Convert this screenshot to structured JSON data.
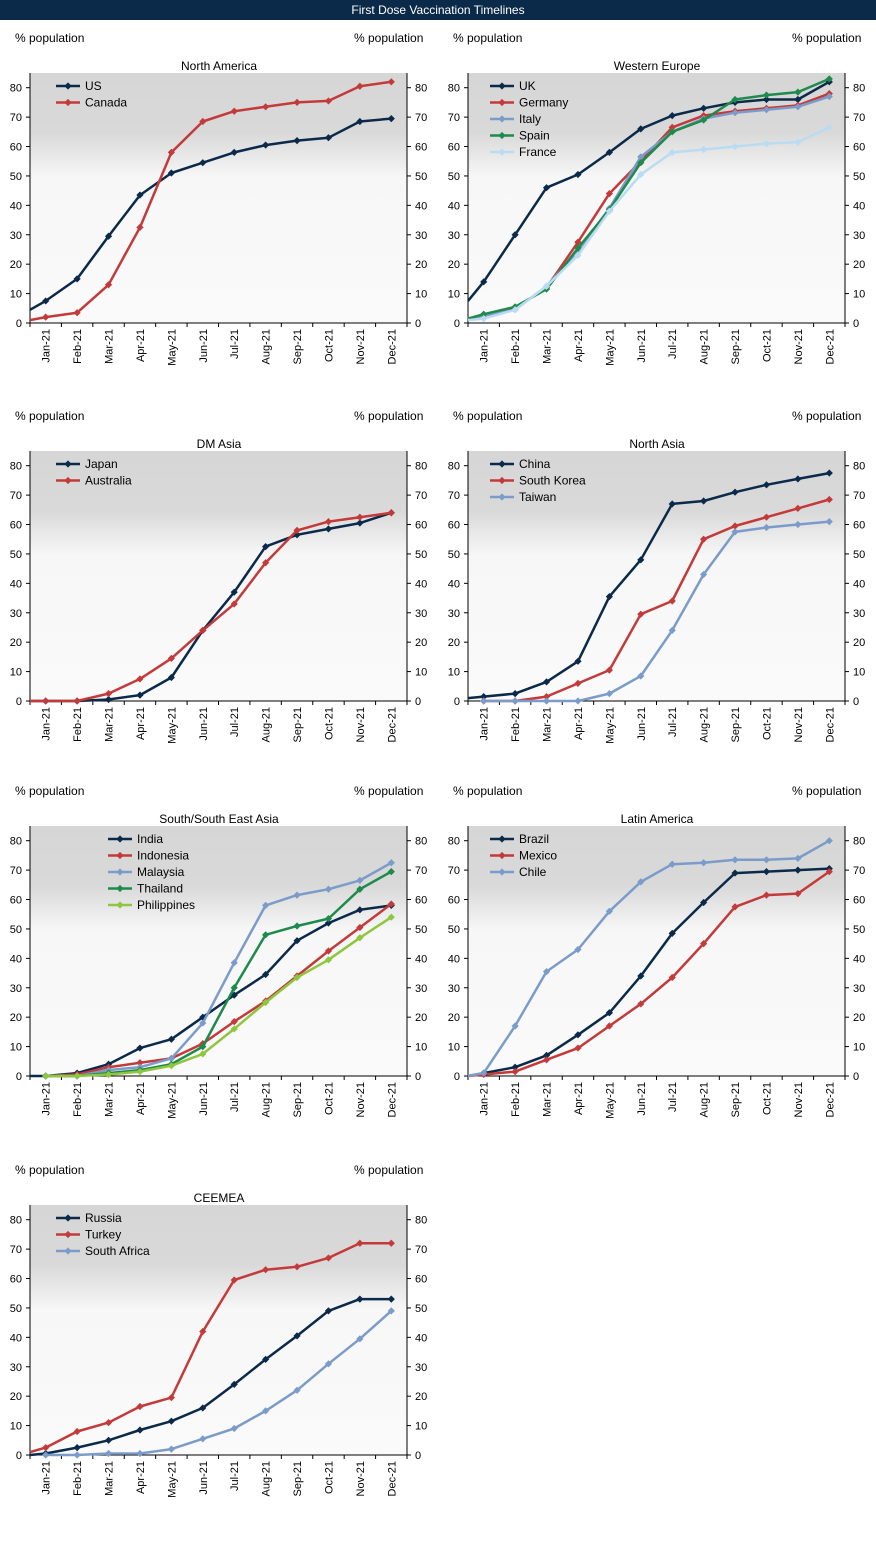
{
  "page_title": "First Dose Vaccination Timelines",
  "chart_data": [
    {
      "type": "line",
      "title": "North America",
      "ylabel_left": "% population",
      "ylabel_right": "% population",
      "ylim": [
        0,
        85
      ],
      "yticks": [
        0,
        10,
        20,
        30,
        40,
        50,
        60,
        70,
        80
      ],
      "categories": [
        "Jan-21",
        "Feb-21",
        "Mar-21",
        "Apr-21",
        "May-21",
        "Jun-21",
        "Jul-21",
        "Aug-21",
        "Sep-21",
        "Oct-21",
        "Nov-21",
        "Dec-21"
      ],
      "series": [
        {
          "name": "US",
          "color": "#0b2a4a",
          "x": [
            -0.5,
            0,
            1,
            2,
            3,
            4,
            5,
            6,
            7,
            8,
            9,
            10,
            11
          ],
          "values": [
            4.5,
            7.5,
            15,
            29.5,
            43.5,
            51,
            54.5,
            58,
            60.5,
            62,
            63,
            68.5,
            69.5
          ]
        },
        {
          "name": "Canada",
          "color": "#c43a3a",
          "x": [
            -0.5,
            0,
            1,
            2,
            3,
            4,
            5,
            6,
            7,
            8,
            9,
            10,
            11
          ],
          "values": [
            1,
            2,
            3.5,
            13,
            32.5,
            58,
            68.5,
            72,
            73.5,
            75,
            75.5,
            80.5,
            82
          ]
        }
      ]
    },
    {
      "type": "line",
      "title": "Western Europe",
      "ylabel_left": "% population",
      "ylabel_right": "% population",
      "ylim": [
        0,
        85
      ],
      "yticks": [
        0,
        10,
        20,
        30,
        40,
        50,
        60,
        70,
        80
      ],
      "categories": [
        "Jan-21",
        "Feb-21",
        "Mar-21",
        "Apr-21",
        "May-21",
        "Jun-21",
        "Jul-21",
        "Aug-21",
        "Sep-21",
        "Oct-21",
        "Nov-21",
        "Dec-21"
      ],
      "series": [
        {
          "name": "UK",
          "color": "#0b2a4a",
          "x": [
            -0.5,
            0,
            1,
            2,
            3,
            4,
            5,
            6,
            7,
            8,
            9,
            10,
            11
          ],
          "values": [
            7.5,
            14,
            30,
            46,
            50.5,
            58,
            66,
            70.5,
            73,
            75,
            76,
            76,
            82
          ]
        },
        {
          "name": "Germany",
          "color": "#c43a3a",
          "x": [
            -0.5,
            0,
            1,
            2,
            3,
            4,
            5,
            6,
            7,
            8,
            9,
            10,
            11
          ],
          "values": [
            1.5,
            2.5,
            5,
            12,
            27.5,
            44,
            55,
            66.5,
            70.5,
            72,
            73,
            74,
            78
          ]
        },
        {
          "name": "Italy",
          "color": "#7b9cc9",
          "x": [
            -0.5,
            0,
            1,
            2,
            3,
            4,
            5,
            6,
            7,
            8,
            9,
            10,
            11
          ],
          "values": [
            1.5,
            2.5,
            4.5,
            12.5,
            24.5,
            39,
            56.5,
            65,
            69.5,
            71.5,
            72.5,
            73.5,
            77
          ]
        },
        {
          "name": "Spain",
          "color": "#1e8a4c",
          "x": [
            -0.5,
            0,
            1,
            2,
            3,
            4,
            5,
            6,
            7,
            8,
            9,
            10,
            11
          ],
          "values": [
            1.5,
            3,
            5.5,
            11.5,
            25.5,
            38.5,
            54.5,
            65,
            69,
            76,
            77.5,
            78.5,
            83
          ]
        },
        {
          "name": "France",
          "color": "#b9dcf2",
          "x": [
            -0.5,
            0,
            1,
            2,
            3,
            4,
            5,
            6,
            7,
            8,
            9,
            10,
            11
          ],
          "values": [
            1,
            1.5,
            4.5,
            12.5,
            23,
            38,
            50.5,
            58,
            59,
            60,
            61,
            61.5,
            66.5
          ]
        }
      ]
    },
    {
      "type": "line",
      "title": "DM Asia",
      "ylabel_left": "% population",
      "ylabel_right": "% population",
      "ylim": [
        0,
        85
      ],
      "yticks": [
        0,
        10,
        20,
        30,
        40,
        50,
        60,
        70,
        80
      ],
      "categories": [
        "Jan-21",
        "Feb-21",
        "Mar-21",
        "Apr-21",
        "May-21",
        "Jun-21",
        "Jul-21",
        "Aug-21",
        "Sep-21",
        "Oct-21",
        "Nov-21",
        "Dec-21"
      ],
      "series": [
        {
          "name": "Japan",
          "color": "#0b2a4a",
          "x": [
            -0.5,
            0,
            1,
            2,
            3,
            4,
            5,
            6,
            7,
            8,
            9,
            10,
            11
          ],
          "values": [
            0,
            0,
            0,
            0.5,
            2,
            8,
            24,
            37,
            52.5,
            56.5,
            58.5,
            60.5,
            64
          ]
        },
        {
          "name": "Australia",
          "color": "#c43a3a",
          "x": [
            -0.5,
            0,
            1,
            2,
            3,
            4,
            5,
            6,
            7,
            8,
            9,
            10,
            11
          ],
          "values": [
            0,
            0,
            0,
            2.5,
            7.5,
            14.5,
            24,
            33,
            47,
            58,
            61,
            62.5,
            64
          ]
        }
      ]
    },
    {
      "type": "line",
      "title": "North Asia",
      "ylabel_left": "% population",
      "ylabel_right": "% population",
      "ylim": [
        0,
        85
      ],
      "yticks": [
        0,
        10,
        20,
        30,
        40,
        50,
        60,
        70,
        80
      ],
      "categories": [
        "Jan-21",
        "Feb-21",
        "Mar-21",
        "Apr-21",
        "May-21",
        "Jun-21",
        "Jul-21",
        "Aug-21",
        "Sep-21",
        "Oct-21",
        "Nov-21",
        "Dec-21"
      ],
      "series": [
        {
          "name": "China",
          "color": "#0b2a4a",
          "x": [
            -0.5,
            0,
            1,
            2,
            3,
            4,
            5,
            6,
            7,
            8,
            9,
            10,
            11
          ],
          "values": [
            1,
            1.5,
            2.5,
            6.5,
            13.5,
            35.5,
            48,
            67,
            68,
            71,
            73.5,
            75.5,
            77.5
          ]
        },
        {
          "name": "South Korea",
          "color": "#c43a3a",
          "x": [
            0,
            1,
            2,
            3,
            4,
            5,
            6,
            7,
            8,
            9,
            10,
            11
          ],
          "values": [
            0,
            0,
            1.5,
            6,
            10.5,
            29.5,
            34,
            55,
            59.5,
            62.5,
            65.5,
            68.5
          ]
        },
        {
          "name": "Taiwan",
          "color": "#7b9cc9",
          "x": [
            0,
            1,
            2,
            3,
            4,
            5,
            6,
            7,
            8,
            9,
            10,
            11
          ],
          "values": [
            0,
            0,
            0,
            0,
            2.5,
            8.5,
            24,
            43,
            57.5,
            59,
            60,
            61
          ]
        }
      ]
    },
    {
      "type": "line",
      "title": "South/South East Asia",
      "ylabel_left": "% population",
      "ylabel_right": "% population",
      "ylim": [
        0,
        85
      ],
      "yticks": [
        0,
        10,
        20,
        30,
        40,
        50,
        60,
        70,
        80
      ],
      "categories": [
        "Jan-21",
        "Feb-21",
        "Mar-21",
        "Apr-21",
        "May-21",
        "Jun-21",
        "Jul-21",
        "Aug-21",
        "Sep-21",
        "Oct-21",
        "Nov-21",
        "Dec-21"
      ],
      "series": [
        {
          "name": "India",
          "color": "#0b2a4a",
          "x": [
            -0.5,
            0,
            1,
            2,
            3,
            4,
            5,
            6,
            7,
            8,
            9,
            10,
            11
          ],
          "values": [
            0,
            0,
            1,
            4,
            9.5,
            12.5,
            20,
            27.5,
            34.5,
            46,
            52,
            56.5,
            58
          ]
        },
        {
          "name": "Indonesia",
          "color": "#c43a3a",
          "x": [
            0,
            1,
            2,
            3,
            4,
            5,
            6,
            7,
            8,
            9,
            10,
            11
          ],
          "values": [
            0,
            0.5,
            3,
            4.5,
            6,
            11,
            18.5,
            25.5,
            34,
            42.5,
            50.5,
            58.5
          ]
        },
        {
          "name": "Malaysia",
          "color": "#7b9cc9",
          "x": [
            0,
            1,
            2,
            3,
            4,
            5,
            6,
            7,
            8,
            9,
            10,
            11
          ],
          "values": [
            0,
            0,
            2,
            3,
            6,
            18,
            38.5,
            58,
            61.5,
            63.5,
            66.5,
            72.5
          ]
        },
        {
          "name": "Thailand",
          "color": "#1e8a4c",
          "x": [
            0,
            1,
            2,
            3,
            4,
            5,
            6,
            7,
            8,
            9,
            10,
            11
          ],
          "values": [
            0,
            0,
            1,
            2,
            4,
            10,
            30,
            48,
            51,
            53.5,
            63.5,
            69.5
          ]
        },
        {
          "name": "Philippines",
          "color": "#8fc640",
          "x": [
            0,
            1,
            2,
            3,
            4,
            5,
            6,
            7,
            8,
            9,
            10,
            11
          ],
          "values": [
            0,
            0,
            0.5,
            1.5,
            3.5,
            7.5,
            16,
            25,
            33.5,
            39.5,
            47,
            54
          ]
        }
      ]
    },
    {
      "type": "line",
      "title": "Latin America",
      "ylabel_left": "% population",
      "ylabel_right": "% population",
      "ylim": [
        0,
        85
      ],
      "yticks": [
        0,
        10,
        20,
        30,
        40,
        50,
        60,
        70,
        80
      ],
      "categories": [
        "Jan-21",
        "Feb-21",
        "Mar-21",
        "Apr-21",
        "May-21",
        "Jun-21",
        "Jul-21",
        "Aug-21",
        "Sep-21",
        "Oct-21",
        "Nov-21",
        "Dec-21"
      ],
      "series": [
        {
          "name": "Brazil",
          "color": "#0b2a4a",
          "x": [
            -0.5,
            0,
            1,
            2,
            3,
            4,
            5,
            6,
            7,
            8,
            9,
            10,
            11
          ],
          "values": [
            0,
            1,
            3,
            7,
            14,
            21.5,
            34,
            48.5,
            59,
            69,
            69.5,
            70,
            70.5
          ]
        },
        {
          "name": "Mexico",
          "color": "#c43a3a",
          "x": [
            -0.5,
            0,
            1,
            2,
            3,
            4,
            5,
            6,
            7,
            8,
            9,
            10,
            11
          ],
          "values": [
            0,
            0.5,
            1.5,
            5.5,
            9.5,
            17,
            24.5,
            33.5,
            45,
            57.5,
            61.5,
            62,
            69.5
          ]
        },
        {
          "name": "Chile",
          "color": "#7b9cc9",
          "x": [
            -0.5,
            0,
            1,
            2,
            3,
            4,
            5,
            6,
            7,
            8,
            9,
            10,
            11
          ],
          "values": [
            0,
            1,
            17,
            35.5,
            43,
            56,
            66,
            72,
            72.5,
            73.5,
            73.5,
            74,
            80
          ]
        }
      ]
    },
    {
      "type": "line",
      "title": "CEEMEA",
      "ylabel_left": "% population",
      "ylabel_right": "% population",
      "ylim": [
        0,
        85
      ],
      "yticks": [
        0,
        10,
        20,
        30,
        40,
        50,
        60,
        70,
        80
      ],
      "categories": [
        "Jan-21",
        "Feb-21",
        "Mar-21",
        "Apr-21",
        "May-21",
        "Jun-21",
        "Jul-21",
        "Aug-21",
        "Sep-21",
        "Oct-21",
        "Nov-21",
        "Dec-21"
      ],
      "series": [
        {
          "name": "Russia",
          "color": "#0b2a4a",
          "x": [
            -0.5,
            0,
            1,
            2,
            3,
            4,
            5,
            6,
            7,
            8,
            9,
            10,
            11
          ],
          "values": [
            0,
            0.5,
            2.5,
            5,
            8.5,
            11.5,
            16,
            24,
            32.5,
            40.5,
            49,
            53,
            53
          ]
        },
        {
          "name": "Turkey",
          "color": "#c43a3a",
          "x": [
            -0.5,
            0,
            1,
            2,
            3,
            4,
            5,
            6,
            7,
            8,
            9,
            10,
            11
          ],
          "values": [
            1,
            2.5,
            8,
            11,
            16.5,
            19.5,
            42,
            59.5,
            63,
            64,
            67,
            72,
            72
          ]
        },
        {
          "name": "South Africa",
          "color": "#7b9cc9",
          "x": [
            0,
            1,
            2,
            3,
            4,
            5,
            6,
            7,
            8,
            9,
            10,
            11
          ],
          "values": [
            0,
            0,
            0.5,
            0.5,
            2,
            5.5,
            9,
            15,
            22,
            31,
            39.5,
            49
          ]
        }
      ]
    }
  ]
}
